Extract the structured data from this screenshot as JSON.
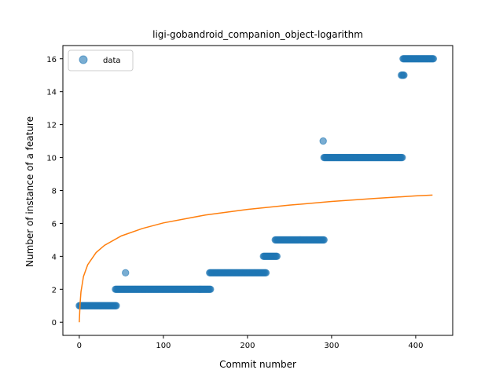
{
  "chart_data": {
    "type": "scatter",
    "title": "ligi-gobandroid_companion_object-logarithm",
    "xlabel": "Commit number",
    "ylabel": "Number of instance of a feature",
    "xlim": [
      -19.5,
      444
    ],
    "ylim": [
      -0.8,
      16.8
    ],
    "xticks": [
      0,
      100,
      200,
      300,
      400
    ],
    "yticks": [
      0,
      2,
      4,
      6,
      8,
      10,
      12,
      14,
      16
    ],
    "grid": false,
    "legend": {
      "placement": "top-left",
      "entries": [
        "data"
      ]
    },
    "colors": {
      "data": "#1f77b4",
      "fit": "#ff7f0e"
    },
    "series": [
      {
        "name": "data",
        "kind": "scatter",
        "segments": [
          {
            "x_start": 0,
            "x_end": 44,
            "y": 1
          },
          {
            "x_start": 43,
            "x_end": 156,
            "y": 2
          },
          {
            "x_start": 155,
            "x_end": 222,
            "y": 3
          },
          {
            "x_start": 219,
            "x_end": 235,
            "y": 4
          },
          {
            "x_start": 233,
            "x_end": 291,
            "y": 5
          },
          {
            "x_start": 291,
            "x_end": 384,
            "y": 10
          },
          {
            "x_start": 383,
            "x_end": 386,
            "y": 15
          },
          {
            "x_start": 385,
            "x_end": 421,
            "y": 16
          }
        ],
        "outliers": [
          {
            "x": 55,
            "y": 3
          },
          {
            "x": 290,
            "y": 11
          }
        ]
      },
      {
        "kind": "line",
        "curve": "logarithmic",
        "x": [
          0,
          1,
          2,
          5,
          10,
          20,
          30,
          50,
          75,
          100,
          150,
          200,
          250,
          300,
          350,
          400,
          420
        ],
        "y": [
          0,
          1.16,
          1.84,
          2.78,
          3.49,
          4.23,
          4.67,
          5.24,
          5.69,
          6.03,
          6.51,
          6.85,
          7.11,
          7.33,
          7.51,
          7.67,
          7.72
        ]
      }
    ]
  }
}
